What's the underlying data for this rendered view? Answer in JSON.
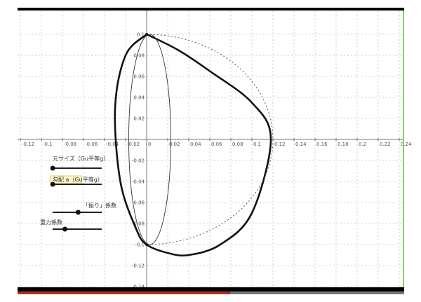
{
  "player": {
    "progress_percent": 55,
    "progress_color": "#a8301f",
    "frame_color": "#000000",
    "edge_color": "#7cd65a"
  },
  "sliders": [
    {
      "label": "元サイズ（Gu平等g）",
      "value_fraction": 0.03
    },
    {
      "label": "勾配 a（Gu平等g）",
      "value_fraction": 0.03,
      "tooltip": "勾配 a"
    },
    {
      "label": "「振り」係数",
      "value_fraction": 0.52
    },
    {
      "label": "重力係数",
      "value_fraction": 0.25
    }
  ],
  "chart_data": {
    "type": "line",
    "xlim": [
      -0.13,
      0.245
    ],
    "ylim": [
      -0.15,
      0.11
    ],
    "grid": true,
    "x_ticks": [
      "-0.12",
      "-0.1",
      "-0.08",
      "-0.06",
      "-0.04",
      "-0.02",
      "0",
      "0.02",
      "0.04",
      "0.06",
      "0.08",
      "0.1",
      "0.12",
      "0.14",
      "0.16",
      "0.18",
      "0.2",
      "0.22",
      "0.24"
    ],
    "y_ticks": [
      "0.1",
      "0.08",
      "0.06",
      "0.04",
      "0.02",
      "0",
      "-0.02",
      "-0.04",
      "-0.06",
      "-0.08",
      "-0.1",
      "-0.12",
      "-0.14"
    ],
    "series": [
      {
        "style": "thick",
        "x": [
          0,
          -0.02,
          -0.03,
          -0.025,
          -0.01,
          0,
          0.02,
          0.04,
          0.07,
          0.1,
          0.118,
          0.1,
          0.06,
          0.03,
          0
        ],
        "y": [
          0.1,
          0.08,
          0.03,
          -0.04,
          -0.085,
          -0.1,
          -0.108,
          -0.11,
          -0.1,
          -0.07,
          0,
          0.035,
          0.065,
          0.085,
          0.1
        ]
      },
      {
        "style": "thin-ellipse",
        "center": [
          0.003,
          0
        ],
        "rx": 0.02,
        "ry": 0.1
      },
      {
        "style": "dashed-arc",
        "center": [
          0,
          0
        ],
        "rx": 0.12,
        "ry": 0.1
      }
    ]
  }
}
